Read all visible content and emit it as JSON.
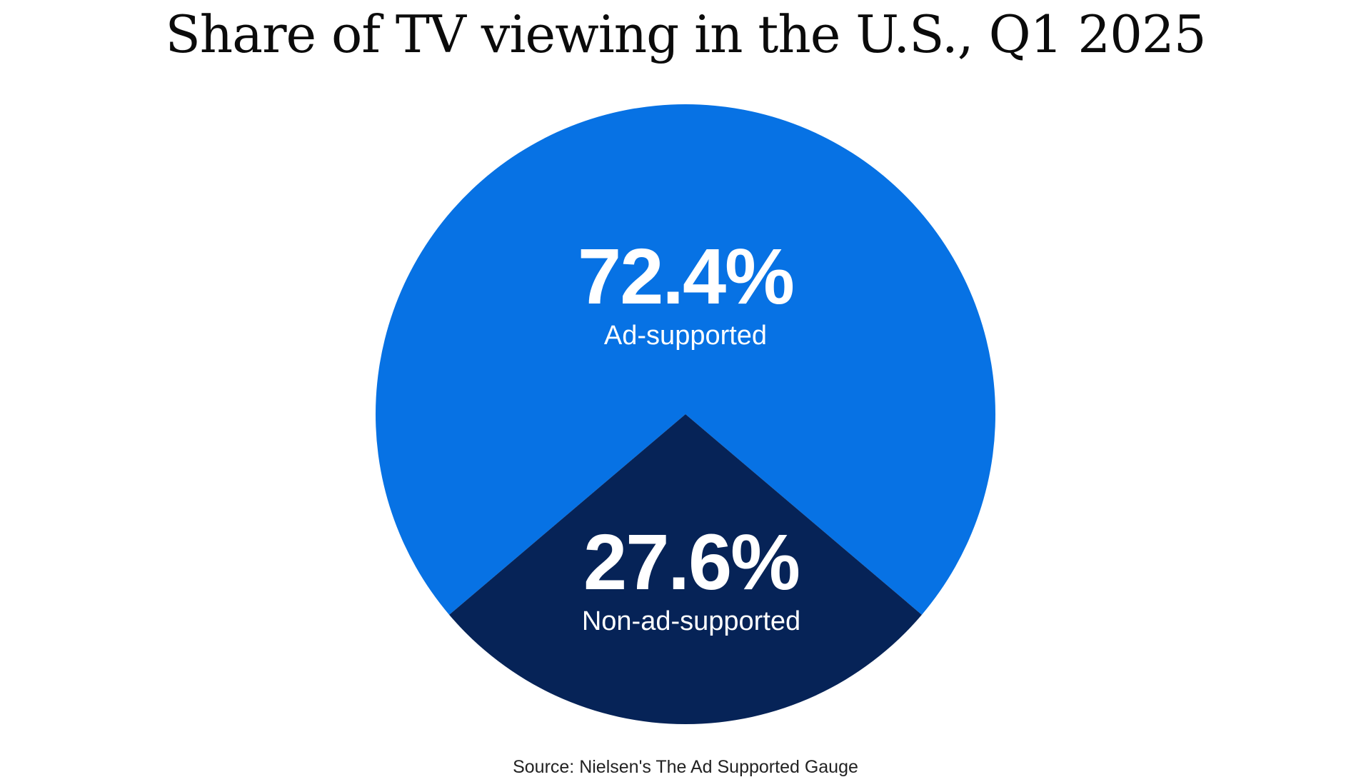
{
  "chart_data": {
    "type": "pie",
    "title": "Share of TV viewing in the U.S., Q1 2025",
    "slices": [
      {
        "label": "Ad-supported",
        "value": 72.4,
        "value_label": "72.4%",
        "color": "#0772E4"
      },
      {
        "label": "Non-ad-supported",
        "value": 27.6,
        "value_label": "27.6%",
        "color": "#062357"
      }
    ],
    "source": "Source: Nielsen's The Ad Supported Gauge"
  }
}
